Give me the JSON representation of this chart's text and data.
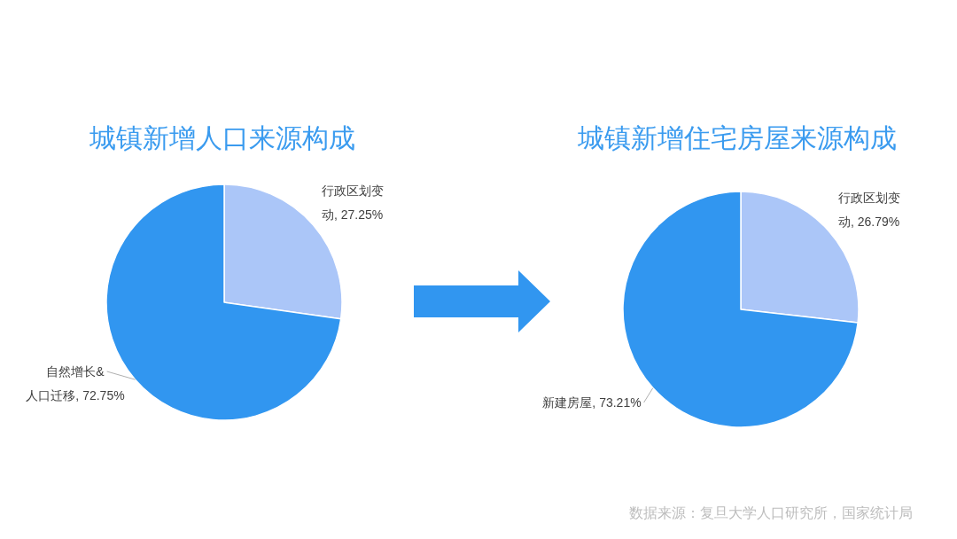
{
  "chart_data": [
    {
      "type": "pie",
      "title": "城镇新增人口来源构成",
      "categories": [
        "行政区划变动",
        "自然增长&人口迁移"
      ],
      "values": [
        27.25,
        72.75
      ],
      "colors": [
        "#abc6f8",
        "#3196f0"
      ],
      "value_labels": [
        "27.25%",
        "72.75%"
      ]
    },
    {
      "type": "pie",
      "title": "城镇新增住宅房屋来源构成",
      "categories": [
        "行政区划变动",
        "新建房屋"
      ],
      "values": [
        26.79,
        73.21
      ],
      "colors": [
        "#abc6f8",
        "#3196f0"
      ],
      "value_labels": [
        "26.79%",
        "73.21%"
      ],
      "annotations": [
        "数据来源：复旦大学人口研究所，国家统计局"
      ]
    }
  ]
}
